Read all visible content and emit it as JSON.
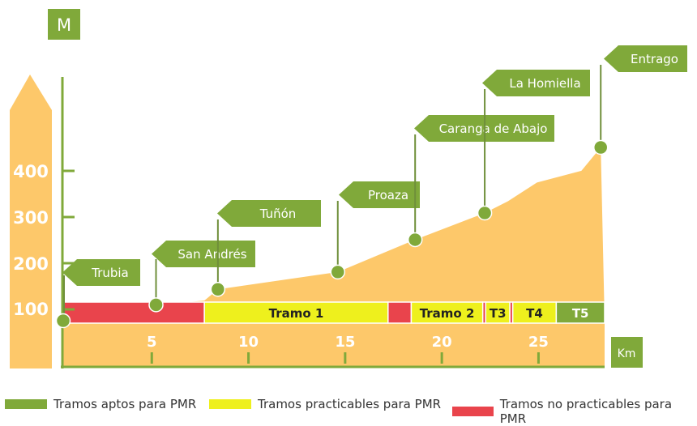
{
  "colors": {
    "green": "#80a93a",
    "yellow": "#eef01d",
    "red": "#e9444c",
    "fill": "#fdc86a",
    "text_green": "#ffffff",
    "tick_label": "#ffffff",
    "legend_text": "#333333"
  },
  "chart_data": {
    "type": "area",
    "ylabel": "M",
    "xlabel": "Km",
    "y_ticks": [
      "100",
      "200",
      "300",
      "400"
    ],
    "x_ticks": [
      "5",
      "10",
      "15",
      "20",
      "25"
    ],
    "xlim": [
      0,
      28
    ],
    "ylim": [
      80,
      460
    ],
    "profile": [
      {
        "x": 0,
        "y": 80
      },
      {
        "x": 4.8,
        "y": 114
      },
      {
        "x": 7.3,
        "y": 123
      },
      {
        "x": 8.0,
        "y": 147
      },
      {
        "x": 14.2,
        "y": 184
      },
      {
        "x": 18.2,
        "y": 253
      },
      {
        "x": 21.8,
        "y": 310
      },
      {
        "x": 23.0,
        "y": 335
      },
      {
        "x": 24.5,
        "y": 375
      },
      {
        "x": 26.8,
        "y": 400
      },
      {
        "x": 27.8,
        "y": 450
      }
    ],
    "places": [
      {
        "name": "Trubia",
        "x": 0,
        "y": 80
      },
      {
        "name": "San Andrés",
        "x": 4.8,
        "y": 114
      },
      {
        "name": "Tuñón",
        "x": 8.0,
        "y": 147
      },
      {
        "name": "Proaza",
        "x": 14.2,
        "y": 184
      },
      {
        "name": "Caranga de Abajo",
        "x": 18.2,
        "y": 253
      },
      {
        "name": "La Homiella",
        "x": 21.8,
        "y": 310
      },
      {
        "name": "Entrago",
        "x": 27.8,
        "y": 450
      }
    ],
    "segments": [
      {
        "label": "",
        "start": 0,
        "end": 7.3,
        "status": "red"
      },
      {
        "label": "Tramo 1",
        "start": 7.3,
        "end": 16.8,
        "status": "yellow"
      },
      {
        "label": "",
        "start": 16.8,
        "end": 18.0,
        "status": "red"
      },
      {
        "label": "Tramo 2",
        "start": 18.0,
        "end": 21.7,
        "status": "yellow"
      },
      {
        "label": "",
        "start": 21.7,
        "end": 21.85,
        "status": "red"
      },
      {
        "label": "T3",
        "start": 21.85,
        "end": 23.1,
        "status": "yellow"
      },
      {
        "label": "",
        "start": 23.1,
        "end": 23.25,
        "status": "red"
      },
      {
        "label": "T4",
        "start": 23.25,
        "end": 25.5,
        "status": "yellow"
      },
      {
        "label": "T5",
        "start": 25.5,
        "end": 28,
        "status": "green"
      }
    ]
  },
  "legend": [
    {
      "label": "Tramos aptos para PMR",
      "status": "green"
    },
    {
      "label": "Tramos practicables para PMR",
      "status": "yellow"
    },
    {
      "label": "Tramos no practicables para PMR",
      "status": "red"
    }
  ]
}
